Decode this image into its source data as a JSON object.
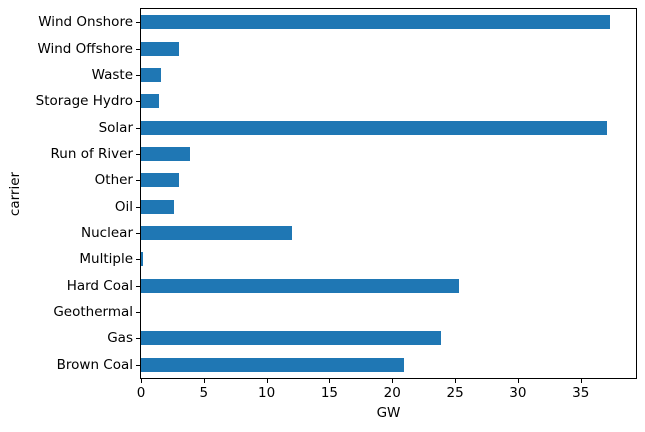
{
  "chart_data": {
    "type": "bar",
    "orientation": "horizontal",
    "title": "",
    "xlabel": "GW",
    "ylabel": "carrier",
    "categories": [
      "Wind Onshore",
      "Wind Offshore",
      "Waste",
      "Storage Hydro",
      "Solar",
      "Run of River",
      "Other",
      "Oil",
      "Nuclear",
      "Multiple",
      "Hard Coal",
      "Geothermal",
      "Gas",
      "Brown Coal"
    ],
    "values": [
      37.3,
      3.0,
      1.6,
      1.4,
      37.1,
      3.9,
      3.0,
      2.6,
      12.0,
      0.15,
      25.3,
      0.0,
      23.9,
      20.9
    ],
    "xlim": [
      0,
      39.4
    ],
    "xticks": [
      0,
      5,
      10,
      15,
      20,
      25,
      30,
      35
    ],
    "bar_color": "#1f77b4",
    "grid": false,
    "legend": "none"
  }
}
